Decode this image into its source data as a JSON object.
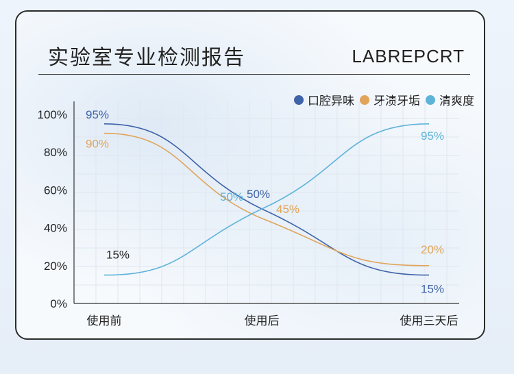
{
  "report": {
    "title": "实验室专业检测报告",
    "code": "LABREPCRT"
  },
  "colors": {
    "odor": "#3f63a8",
    "stain": "#e0a55a",
    "fresh": "#5fb3d9"
  },
  "chart_data": {
    "type": "line",
    "categories": [
      "使用前",
      "使用后",
      "使用三天后"
    ],
    "ylim": [
      0,
      100
    ],
    "y_ticks": [
      "0%",
      "20%",
      "40%",
      "60%",
      "80%",
      "100%"
    ],
    "grid": true,
    "legend_position": "top-right",
    "series": [
      {
        "name": "口腔异味",
        "values": [
          95,
          50,
          15
        ],
        "labels": [
          "95%",
          "50%",
          "15%"
        ]
      },
      {
        "name": "牙渍牙垢",
        "values": [
          90,
          45,
          20
        ],
        "labels": [
          "90%",
          "45%",
          "20%"
        ]
      },
      {
        "name": "清爽度",
        "values": [
          15,
          50,
          95
        ],
        "labels": [
          "15%",
          "50%",
          "95%"
        ]
      }
    ]
  }
}
